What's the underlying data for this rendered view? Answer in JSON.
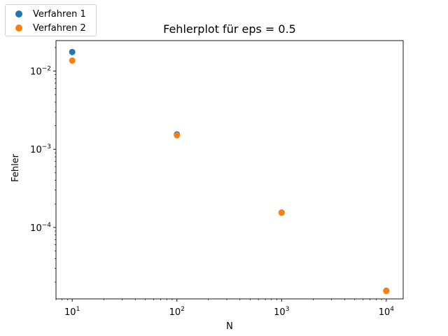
{
  "chart_data": {
    "type": "scatter",
    "title": "Fehlerplot für eps = 0.5",
    "xlabel": "N",
    "ylabel": "Fehler",
    "xscale": "log",
    "yscale": "log",
    "xlim": [
      7,
      14500
    ],
    "ylim": [
      1.22e-05,
      0.0245
    ],
    "grid": false,
    "legend_position": "top-left outside axes",
    "x_ticks": [
      {
        "label_base": "10",
        "label_exp": "1",
        "value": 10
      },
      {
        "label_base": "10",
        "label_exp": "2",
        "value": 100
      },
      {
        "label_base": "10",
        "label_exp": "3",
        "value": 1000
      },
      {
        "label_base": "10",
        "label_exp": "4",
        "value": 10000
      }
    ],
    "y_ticks": [
      {
        "label_base": "10",
        "label_exp": "−4",
        "value": 0.0001
      },
      {
        "label_base": "10",
        "label_exp": "−3",
        "value": 0.001
      },
      {
        "label_base": "10",
        "label_exp": "−2",
        "value": 0.01
      }
    ],
    "series": [
      {
        "name": "Verfahren 1",
        "color": "#1f77b4",
        "x": [
          10,
          100,
          1000,
          10000
        ],
        "y": [
          0.0175,
          0.00155,
          0.000155,
          1.55e-05
        ]
      },
      {
        "name": "Verfahren 2",
        "color": "#ff7f0e",
        "x": [
          10,
          100,
          1000,
          10000
        ],
        "y": [
          0.0136,
          0.00151,
          0.000154,
          1.54e-05
        ]
      }
    ]
  }
}
